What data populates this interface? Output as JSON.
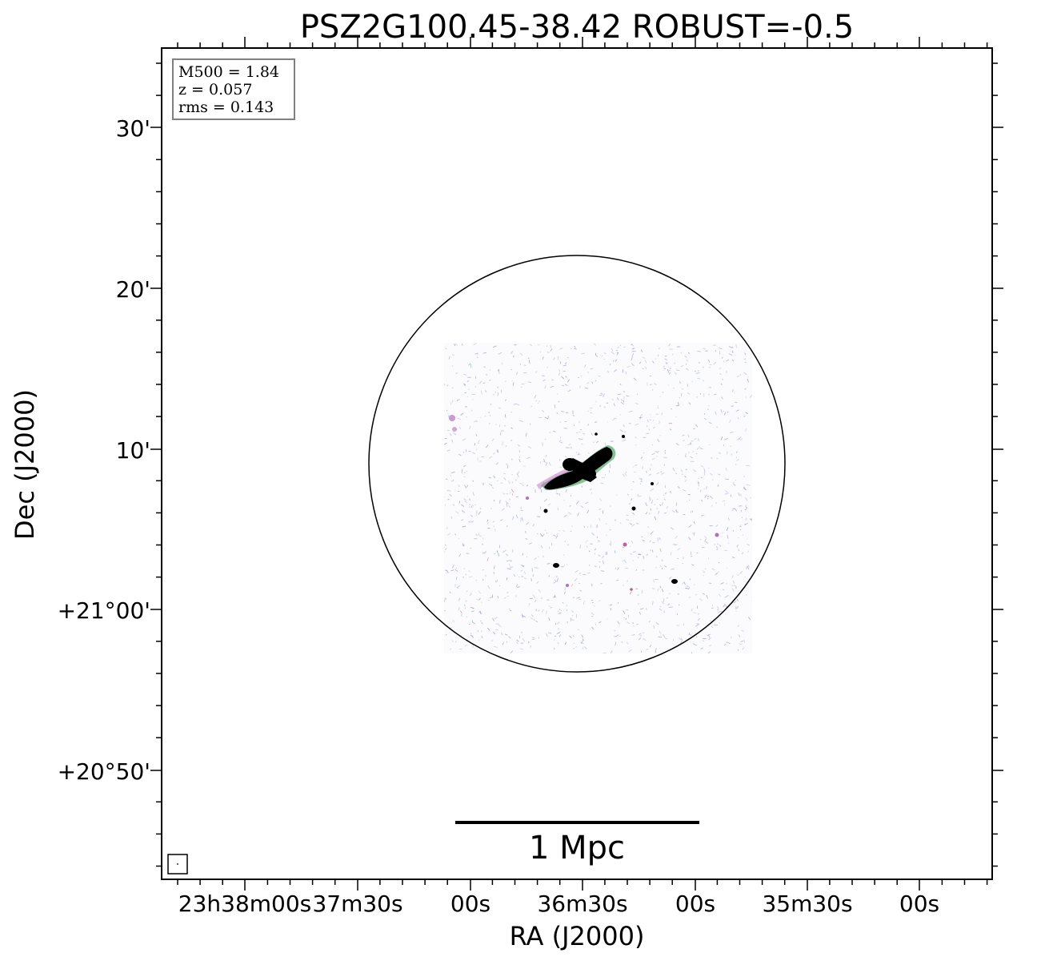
{
  "chart_data": {
    "type": "scatter",
    "title": "PSZ2G100.45-38.42 ROBUST=-0.5",
    "xlabel": "RA (J2000)",
    "ylabel": "Dec (J2000)",
    "x_ticks": [
      "23h38m00s",
      "37m30s",
      "00s",
      "36m30s",
      "00s",
      "35m30s",
      "00s"
    ],
    "y_ticks": [
      "30'",
      "20'",
      "10'",
      "+21°00'",
      "+20°50'"
    ],
    "info_box": {
      "m500": "M500 = 1.84",
      "z": "z = 0.057",
      "rms": "rms = 0.143"
    },
    "scale_bar_label": "1 Mpc",
    "colors": {
      "noise_blue": "#7a8fd0",
      "noise_purple": "#b070c0",
      "source": "#000000",
      "halo_green": "#3a9a50"
    }
  }
}
